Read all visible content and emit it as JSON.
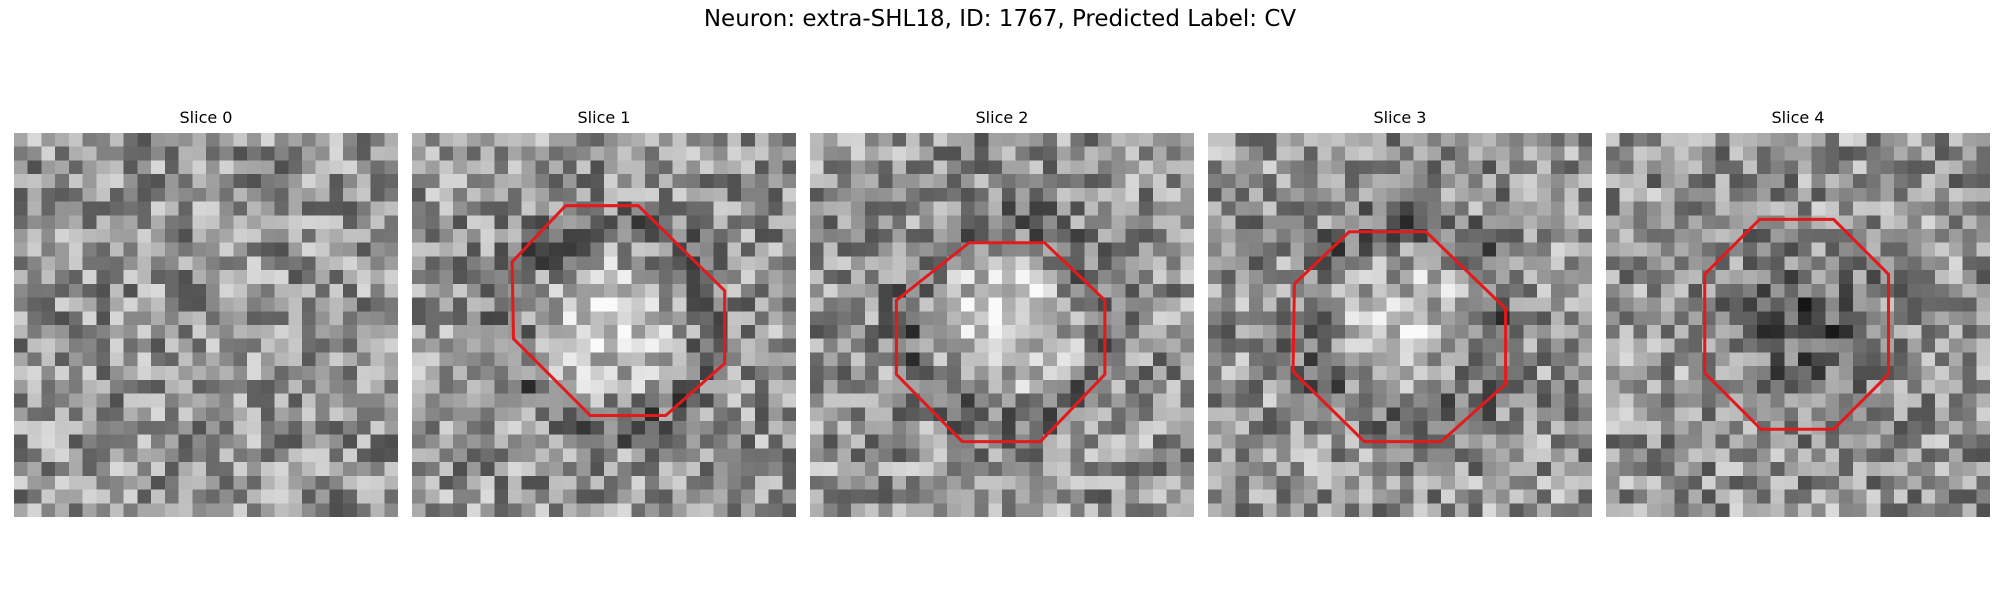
{
  "title": "Neuron: extra-SHL18, ID: 1767, Predicted Label: CV",
  "outline_color": "#e31a1c",
  "panels": [
    {
      "label": "Slice 0",
      "octagon": false,
      "center_brightness": 0.0
    },
    {
      "label": "Slice 1",
      "octagon": true,
      "center_brightness": 0.9
    },
    {
      "label": "Slice 2",
      "octagon": true,
      "center_brightness": 0.9
    },
    {
      "label": "Slice 3",
      "octagon": true,
      "center_brightness": 0.7
    },
    {
      "label": "Slice 4",
      "octagon": true,
      "center_brightness": -0.8
    }
  ]
}
